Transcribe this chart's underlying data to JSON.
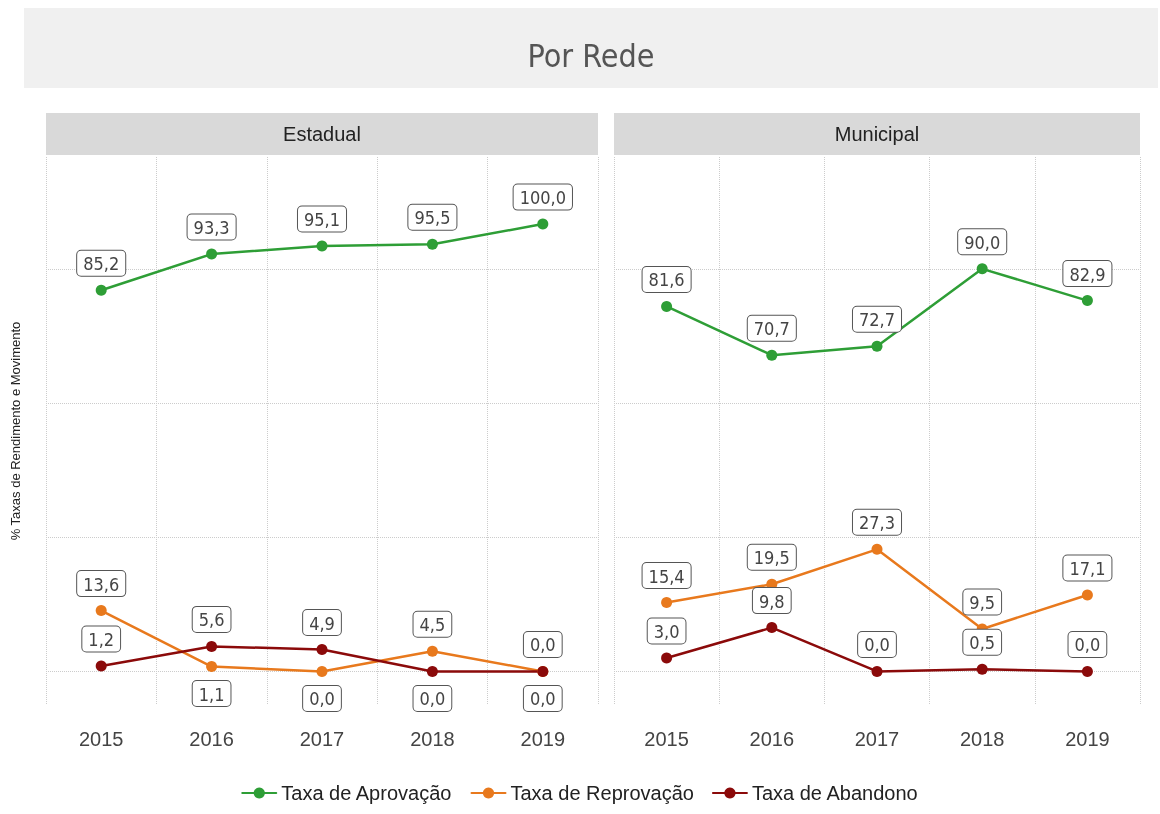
{
  "chart_data": [
    {
      "type": "line",
      "title": "Por Rede",
      "subtitle": "Estadual",
      "ylabel": "% Taxas de Rendimento e Movimento",
      "categories": [
        "2015",
        "2016",
        "2017",
        "2018",
        "2019"
      ],
      "ylim": [
        -7.5,
        115
      ],
      "yticks": [
        {
          "value": 0,
          "label": null
        },
        {
          "value": 30,
          "label": null
        },
        {
          "value": 60,
          "label": null
        },
        {
          "value": 90,
          "label": null
        }
      ],
      "tick_labels": "x",
      "grid": true,
      "legend": "bottom",
      "marker": "circle",
      "line_style": "solid",
      "series": [
        {
          "name": "Taxa de Aprovação",
          "color": "#2e9e36",
          "values": [
            85.2,
            93.3,
            95.1,
            95.5,
            100.0
          ],
          "value_labels": [
            "85,2",
            "93,3",
            "95,1",
            "95,5",
            "100,0"
          ]
        },
        {
          "name": "Taxa de Reprovação",
          "color": "#e8791d",
          "values": [
            13.6,
            1.1,
            0.0,
            4.5,
            0.0
          ],
          "value_labels": [
            "13,6",
            "1,1",
            "0,0",
            "4,5",
            "0,0"
          ]
        },
        {
          "name": "Taxa de Abandono",
          "color": "#8b0a0a",
          "values": [
            1.2,
            5.6,
            4.9,
            0.0,
            0.0
          ],
          "value_labels": [
            "1,2",
            "5,6",
            "4,9",
            "0,0",
            "0,0"
          ]
        }
      ]
    },
    {
      "type": "line",
      "subtitle": "Municipal",
      "categories": [
        "2015",
        "2016",
        "2017",
        "2018",
        "2019"
      ],
      "ylim": [
        -7.5,
        115
      ],
      "yticks": [
        {
          "value": 0,
          "label": null
        },
        {
          "value": 30,
          "label": null
        },
        {
          "value": 60,
          "label": null
        },
        {
          "value": 90,
          "label": null
        }
      ],
      "tick_labels": "x",
      "grid": true,
      "marker": "circle",
      "line_style": "solid",
      "series": [
        {
          "color": "#2e9e36",
          "values": [
            81.6,
            70.7,
            72.7,
            90.0,
            82.9
          ],
          "value_labels": [
            "81,6",
            "70,7",
            "72,7",
            "90,0",
            "82,9"
          ]
        },
        {
          "color": "#e8791d",
          "values": [
            15.4,
            19.5,
            27.3,
            9.5,
            17.1
          ],
          "value_labels": [
            "15,4",
            "19,5",
            "27,3",
            "9,5",
            "17,1"
          ]
        },
        {
          "color": "#8b0a0a",
          "values": [
            3.0,
            9.8,
            0.0,
            0.5,
            0.0
          ],
          "value_labels": [
            "3,0",
            "9,8",
            "0,0",
            "0,5",
            "0,0"
          ]
        }
      ]
    }
  ]
}
